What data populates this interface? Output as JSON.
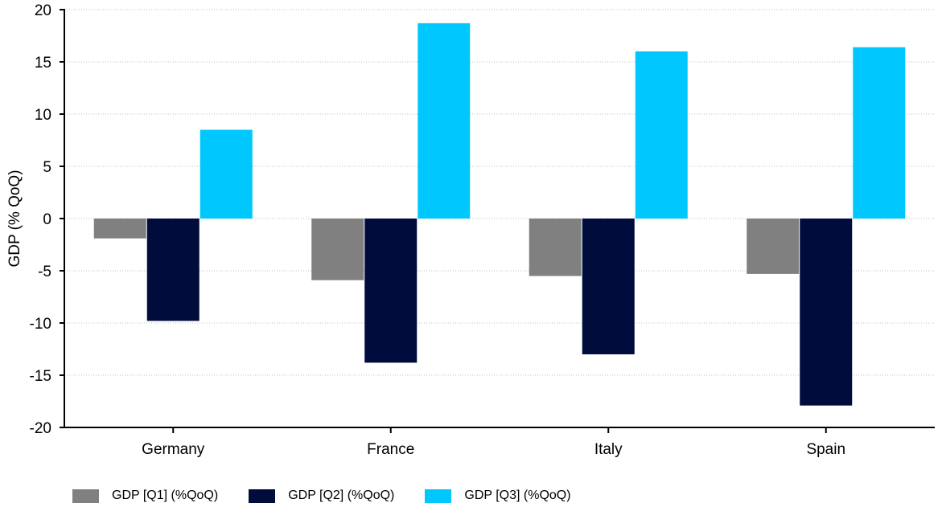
{
  "chart_data": {
    "type": "bar",
    "title": "",
    "xlabel": "",
    "ylabel": "GDP (% QoQ)",
    "ylim": [
      -20,
      20
    ],
    "yticks": [
      20,
      15,
      10,
      5,
      0,
      -5,
      -10,
      -15,
      -20
    ],
    "grid": "horizontal dotted",
    "legend_position": "bottom-left",
    "categories": [
      "Germany",
      "France",
      "Italy",
      "Spain"
    ],
    "series": [
      {
        "name": "GDP [Q1] (%QoQ)",
        "color": "#808080",
        "values": [
          -1.9,
          -5.9,
          -5.5,
          -5.3
        ]
      },
      {
        "name": "GDP [Q2] (%QoQ)",
        "color": "#000c3c",
        "values": [
          -9.8,
          -13.8,
          -13.0,
          -17.9
        ]
      },
      {
        "name": "GDP [Q3] (%QoQ)",
        "color": "#00c8ff",
        "values": [
          8.5,
          18.7,
          16.0,
          16.4
        ]
      }
    ]
  }
}
